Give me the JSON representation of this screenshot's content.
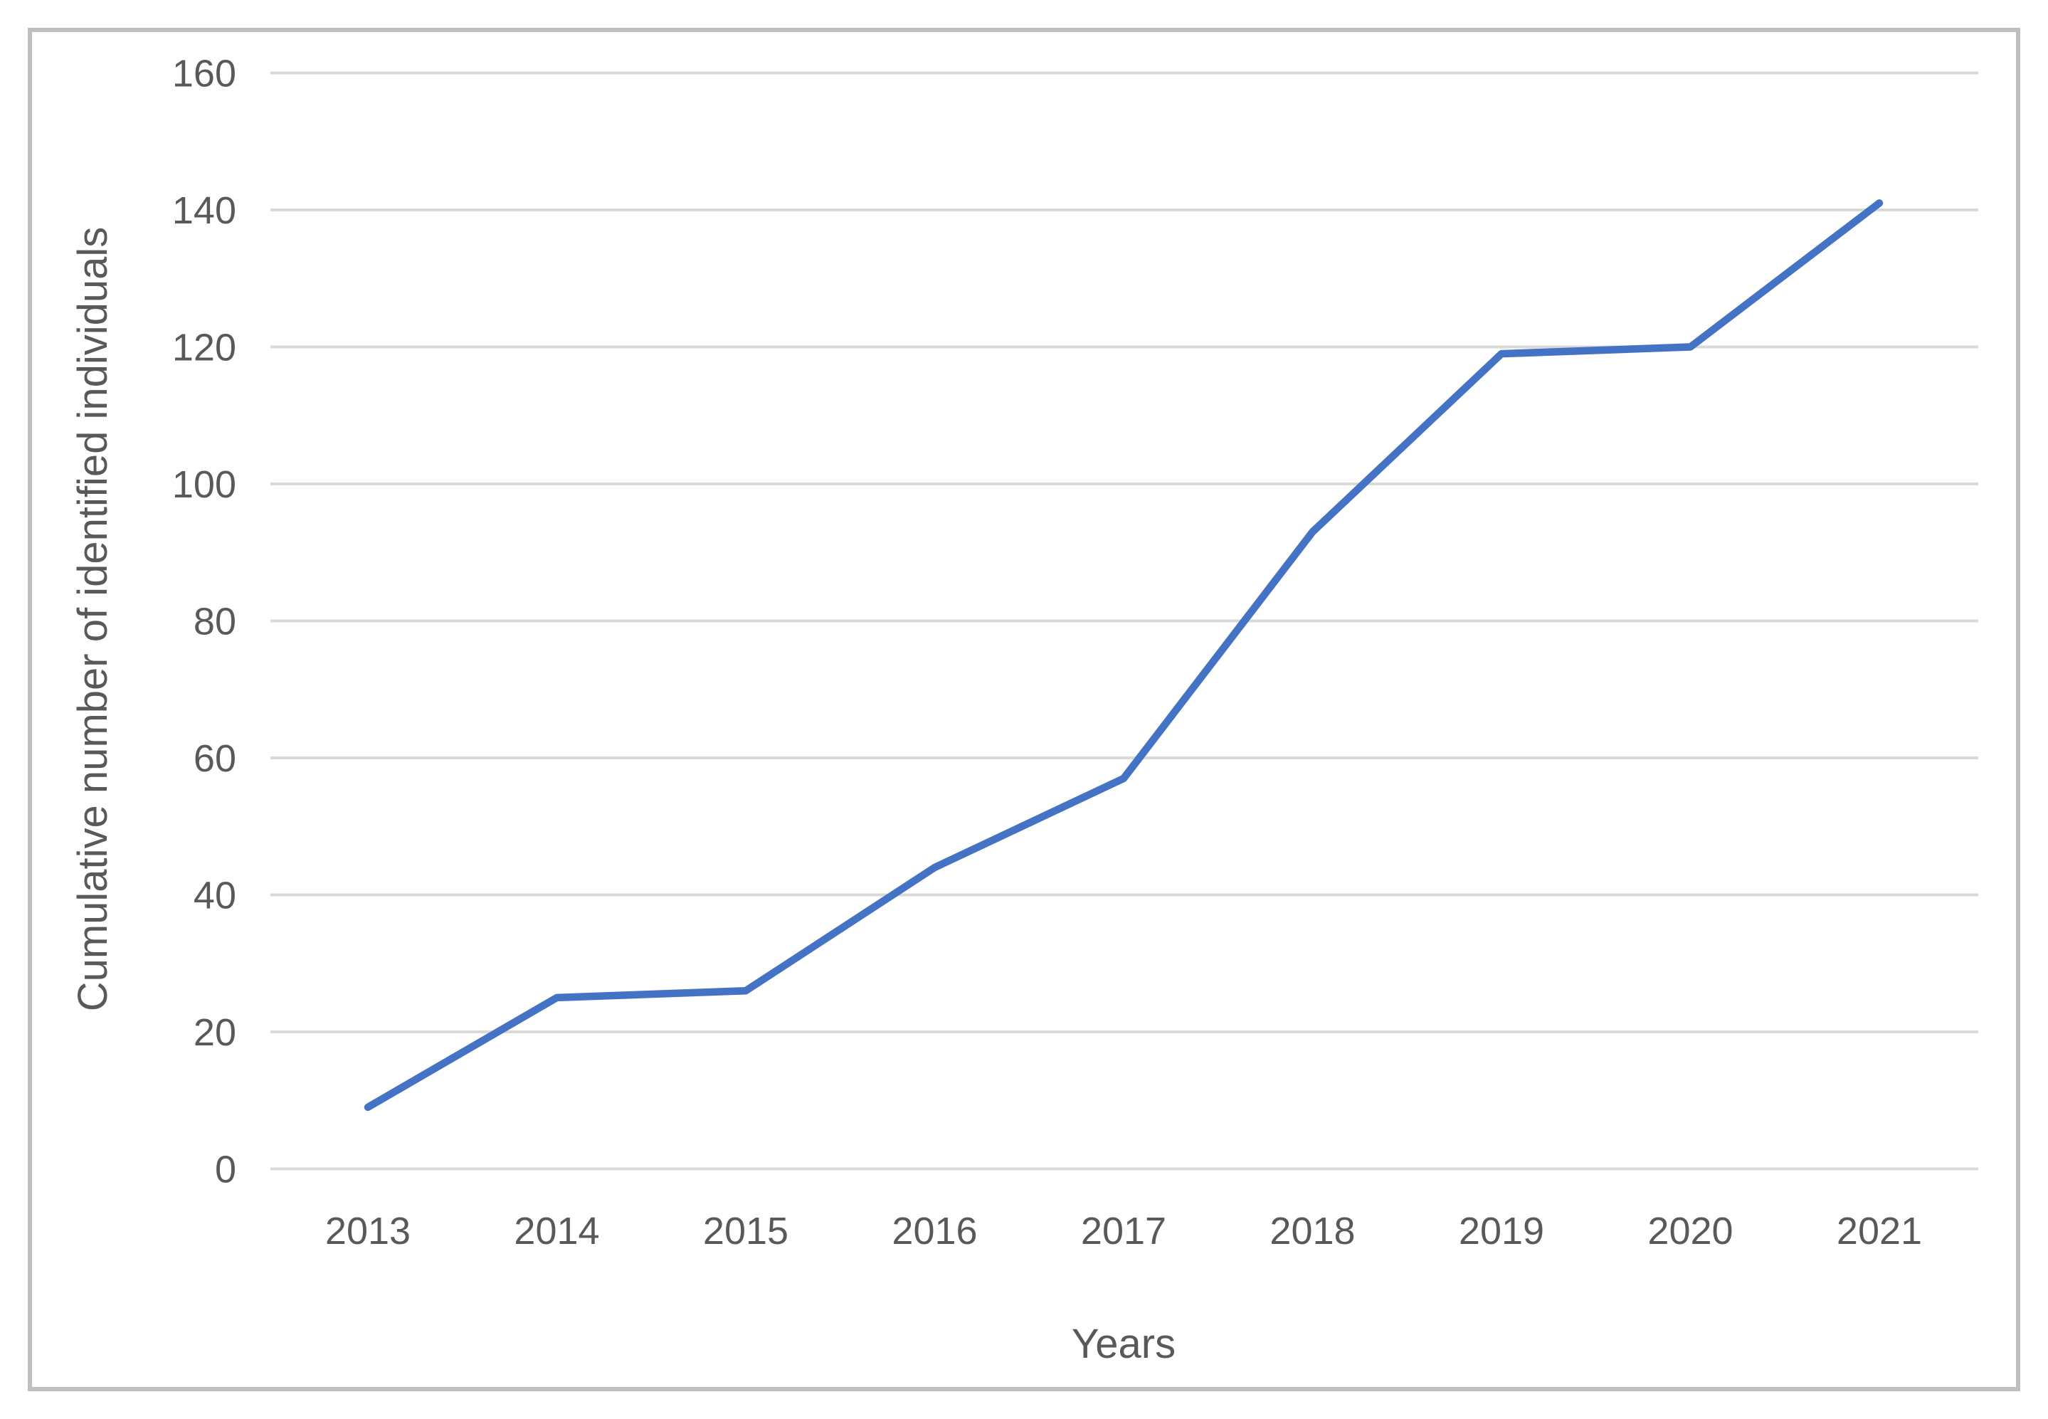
{
  "figure": {
    "frame_color": "#bfbfbf",
    "background_color": "#ffffff"
  },
  "chart_data": {
    "type": "line",
    "title": "",
    "xlabel": "Years",
    "ylabel": "Cumulative number of identified individuals",
    "categories": [
      "2013",
      "2014",
      "2015",
      "2016",
      "2017",
      "2018",
      "2019",
      "2020",
      "2021"
    ],
    "series": [
      {
        "name": "Cumulative number of identified individuals",
        "values": [
          9,
          25,
          26,
          44,
          57,
          93,
          119,
          120,
          141
        ],
        "color": "#4472C4",
        "line_width": 10.5
      }
    ],
    "ylim": [
      0,
      160
    ],
    "ytick_step": 20,
    "yticks": [
      0,
      20,
      40,
      60,
      80,
      100,
      120,
      140,
      160
    ],
    "grid": "horizontal",
    "gridline_color": "#d9d9d9",
    "tick_label_color": "#595959",
    "legend": "none"
  }
}
